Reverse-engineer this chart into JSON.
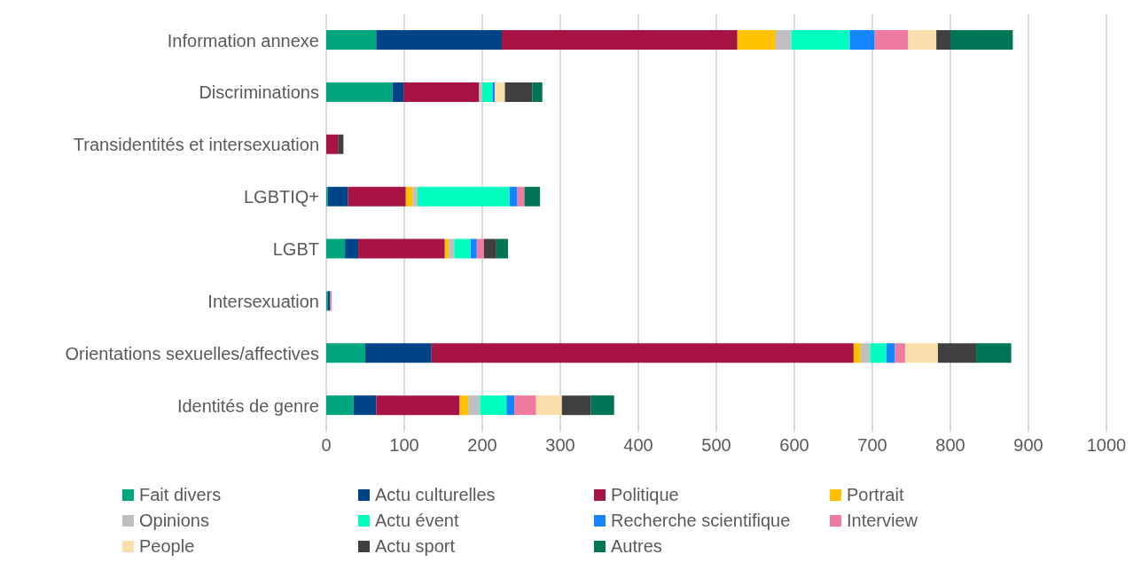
{
  "chart_data": {
    "type": "bar",
    "orientation": "horizontal",
    "stacked": true,
    "categories": [
      "Information annexe",
      "Discriminations",
      "Transidentités et intersexuation",
      "LGBTIQ+",
      "LGBT",
      "Intersexuation",
      "Orientations sexuelles/affectives",
      "Identités de genre"
    ],
    "series": [
      {
        "name": "Fait divers",
        "color": "#00a67e",
        "values": [
          64,
          85,
          0,
          2,
          24,
          2,
          50,
          35
        ]
      },
      {
        "name": "Actu culturelles",
        "color": "#004488",
        "values": [
          161,
          14,
          0,
          26,
          17,
          3,
          85,
          29
        ]
      },
      {
        "name": "Politique",
        "color": "#a61344",
        "values": [
          302,
          97,
          15,
          74,
          111,
          0,
          541,
          107
        ]
      },
      {
        "name": "Portrait",
        "color": "#ffc000",
        "values": [
          49,
          0,
          0,
          9,
          5,
          0,
          9,
          11
        ]
      },
      {
        "name": "Opinions",
        "color": "#bfbfbf",
        "values": [
          20,
          4,
          null,
          6,
          7,
          0,
          12,
          15
        ]
      },
      {
        "name": "Actu évent",
        "color": "#00ffbf",
        "values": [
          75,
          13,
          0,
          118,
          21,
          0,
          21,
          34
        ]
      },
      {
        "name": "Recherche scientifique",
        "color": "#1485ff",
        "values": [
          32,
          3,
          0,
          10,
          8,
          0,
          11,
          10
        ]
      },
      {
        "name": "Interview",
        "color": "#f07ba0",
        "values": [
          43,
          0,
          0,
          9,
          9,
          2,
          13,
          28
        ]
      },
      {
        "name": "People",
        "color": "#fadeac",
        "values": [
          36,
          13,
          0,
          0,
          0,
          0,
          42,
          33
        ]
      },
      {
        "name": "Actu sport",
        "color": "#404040",
        "values": [
          18,
          35,
          7,
          0,
          16,
          0,
          49,
          37
        ]
      },
      {
        "name": "Autres",
        "color": "#007556",
        "values": [
          80,
          13,
          0,
          20,
          15,
          0,
          45,
          30
        ]
      }
    ],
    "xlim": [
      0,
      1000
    ],
    "xticks": [
      0,
      100,
      200,
      300,
      400,
      500,
      600,
      700,
      800,
      900,
      1000
    ],
    "grid": "x",
    "legend": "bottom"
  }
}
